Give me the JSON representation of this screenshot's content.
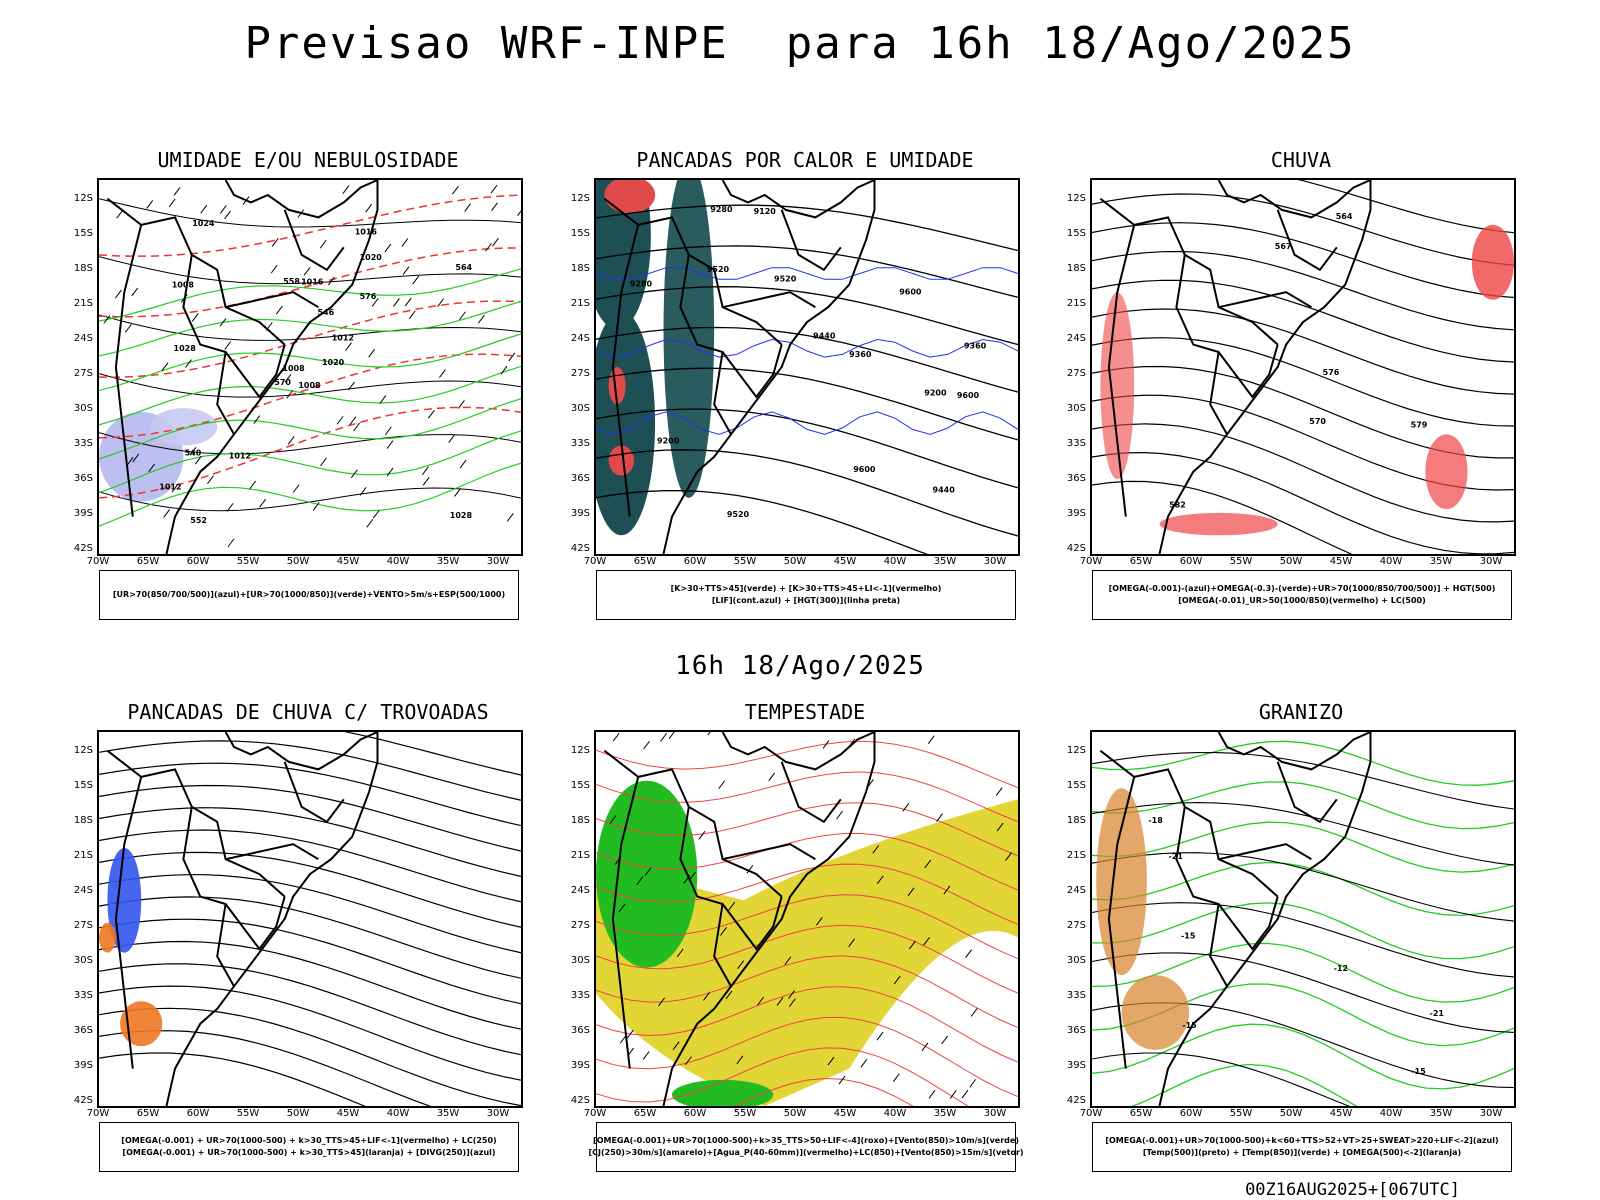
{
  "title": "Previsao WRF-INPE  para 16h 18/Ago/2025",
  "mid_date": "16h 18/Ago/2025",
  "footer": "00Z16AUG2025+[067UTC]",
  "axes": {
    "lat": [
      "12S",
      "15S",
      "18S",
      "21S",
      "24S",
      "27S",
      "30S",
      "33S",
      "36S",
      "39S",
      "42S"
    ],
    "lon": [
      "70W",
      "65W",
      "60W",
      "55W",
      "50W",
      "45W",
      "40W",
      "35W",
      "30W"
    ]
  },
  "panels": [
    {
      "id": "p1",
      "title": "UMIDADE E/OU NEBULOSIDADE",
      "legend": [
        "[UR>70(850/700/500)](azul)+[UR>70(1000/850)](verde)+VENTO>5m/s+ESP(500/1000)"
      ],
      "labels": [
        "1008",
        "1008",
        "1008",
        "1012",
        "1012",
        "1012",
        "1016",
        "1016",
        "1020",
        "1020",
        "1024",
        "1028",
        "1028",
        "564",
        "570",
        "576",
        "552",
        "558",
        "546",
        "540"
      ]
    },
    {
      "id": "p2",
      "title": "PANCADAS POR CALOR E UMIDADE",
      "legend": [
        "[K>30+TTS>45](verde) + [K>30+TTS>45+LI<-1](vermelho)",
        "[LIF](cont.azul) + [HGT(300)](linha preta)"
      ],
      "labels": [
        "9600",
        "9600",
        "9600",
        "9520",
        "9520",
        "9520",
        "9440",
        "9440",
        "9360",
        "9360",
        "9280",
        "9280",
        "9200",
        "9200",
        "9120"
      ]
    },
    {
      "id": "p3",
      "title": "CHUVA",
      "legend": [
        "[OMEGA(-0.001)-(azul)+OMEGA(-0.3)-(verde)+UR>70(1000/850/700/500)] + HGT(500)",
        "[OMEGA(-0.01)_UR>50(1000/850)(vermelho) + LC(500)"
      ],
      "labels": [
        "582",
        "579",
        "576",
        "570",
        "567",
        "564"
      ]
    },
    {
      "id": "p4",
      "title": "PANCADAS DE CHUVA C/ TROVOADAS",
      "legend": [
        "[OMEGA(-0.001) + UR>70(1000-500) + k>30_TTS>45+LIF<-1](vermelho) + LC(250)",
        "[OMEGA(-0.001) + UR>70(1000-500) + k>30_TTS>45](laranja) + [DIVG(250)](azul)"
      ],
      "labels": []
    },
    {
      "id": "p5",
      "title": "TEMPESTADE",
      "legend": [
        "[OMEGA(-0.001)+UR>70(1000-500)+k>35_TTS>50+LIF<-4](roxo)+[Vento(850)>10m/s](verde)",
        "[CJ(250)>30m/s](amarelo)+[Agua_P(40-60mm)](vermelho)+LC(850)+[Vento(850)>15m/s](vetor)"
      ],
      "labels": []
    },
    {
      "id": "p6",
      "title": "GRANIZO",
      "legend": [
        "[OMEGA(-0.001)+UR>70(1000-500)+k<60+TTS>52+VT>25+SWEAT>220+LIF<-2](azul)",
        "[Temp(500)](preto) + [Temp(850)](verde) + [OMEGA(500)<-2](laranja)"
      ],
      "labels": [
        "-15",
        "-15",
        "-12",
        "-18",
        "-21",
        "-21",
        "-15"
      ]
    }
  ]
}
